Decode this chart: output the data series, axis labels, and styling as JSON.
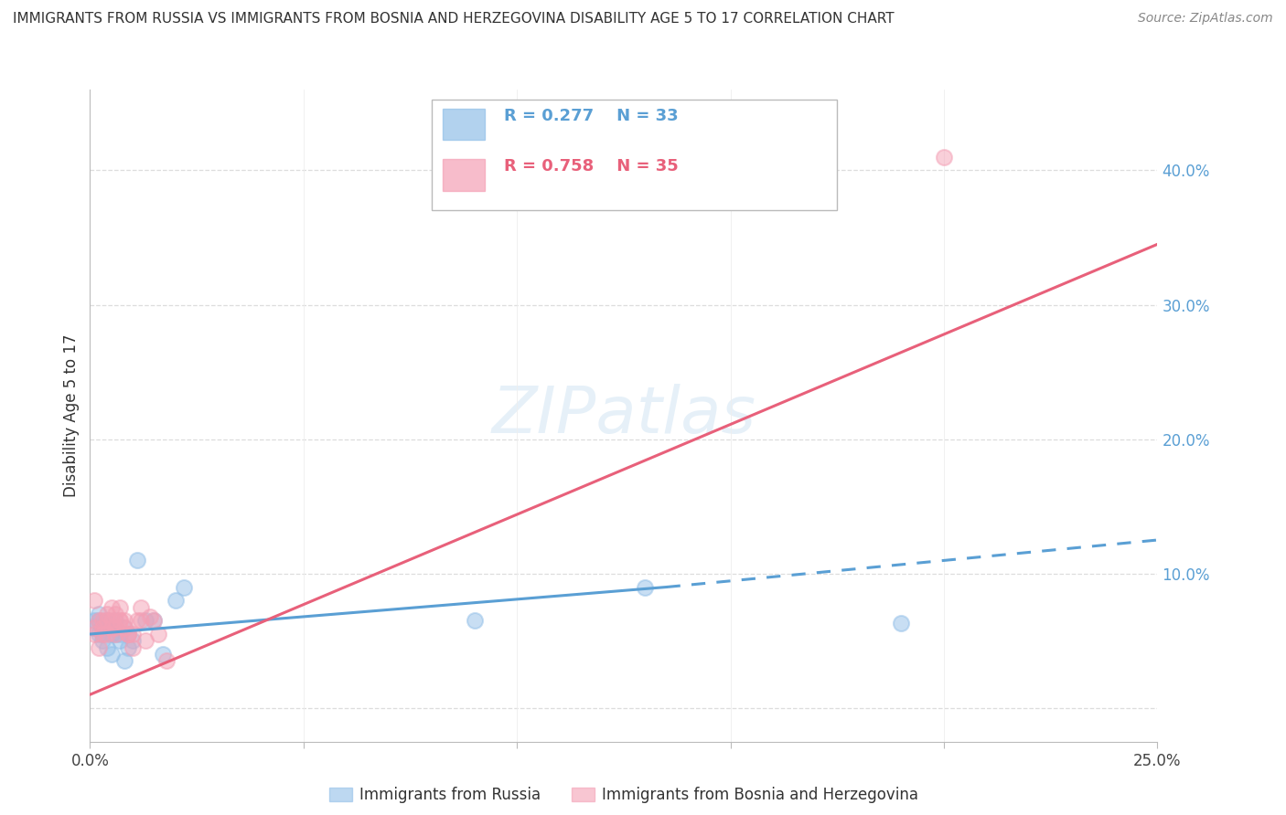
{
  "title": "IMMIGRANTS FROM RUSSIA VS IMMIGRANTS FROM BOSNIA AND HERZEGOVINA DISABILITY AGE 5 TO 17 CORRELATION CHART",
  "source": "Source: ZipAtlas.com",
  "ylabel": "Disability Age 5 to 17",
  "xlim": [
    0.0,
    0.25
  ],
  "ylim": [
    -0.025,
    0.46
  ],
  "russia_R": 0.277,
  "russia_N": 33,
  "bosnia_R": 0.758,
  "bosnia_N": 35,
  "russia_color": "#92bfe8",
  "bosnia_color": "#f4a0b5",
  "russia_line_color": "#5a9fd4",
  "bosnia_line_color": "#e8607a",
  "russia_scatter_x": [
    0.001,
    0.001,
    0.002,
    0.002,
    0.002,
    0.003,
    0.003,
    0.003,
    0.004,
    0.004,
    0.004,
    0.005,
    0.005,
    0.005,
    0.006,
    0.006,
    0.006,
    0.007,
    0.007,
    0.008,
    0.008,
    0.009,
    0.009,
    0.01,
    0.011,
    0.013,
    0.015,
    0.017,
    0.02,
    0.022,
    0.09,
    0.13,
    0.19
  ],
  "russia_scatter_y": [
    0.065,
    0.06,
    0.055,
    0.065,
    0.07,
    0.05,
    0.055,
    0.06,
    0.045,
    0.06,
    0.065,
    0.055,
    0.04,
    0.06,
    0.06,
    0.065,
    0.055,
    0.055,
    0.05,
    0.035,
    0.06,
    0.045,
    0.055,
    0.05,
    0.11,
    0.065,
    0.065,
    0.04,
    0.08,
    0.09,
    0.065,
    0.09,
    0.063
  ],
  "bosnia_scatter_x": [
    0.001,
    0.001,
    0.001,
    0.002,
    0.002,
    0.003,
    0.003,
    0.003,
    0.004,
    0.004,
    0.004,
    0.005,
    0.005,
    0.005,
    0.006,
    0.006,
    0.006,
    0.007,
    0.007,
    0.007,
    0.008,
    0.008,
    0.009,
    0.009,
    0.01,
    0.01,
    0.011,
    0.012,
    0.012,
    0.013,
    0.014,
    0.015,
    0.016,
    0.018,
    0.2
  ],
  "bosnia_scatter_y": [
    0.055,
    0.06,
    0.08,
    0.045,
    0.065,
    0.055,
    0.06,
    0.065,
    0.07,
    0.055,
    0.065,
    0.06,
    0.075,
    0.065,
    0.06,
    0.055,
    0.07,
    0.065,
    0.075,
    0.065,
    0.06,
    0.065,
    0.055,
    0.055,
    0.055,
    0.045,
    0.065,
    0.075,
    0.065,
    0.05,
    0.068,
    0.065,
    0.055,
    0.035,
    0.41
  ],
  "legend_russia": "Immigrants from Russia",
  "legend_bosnia": "Immigrants from Bosnia and Herzegovina"
}
